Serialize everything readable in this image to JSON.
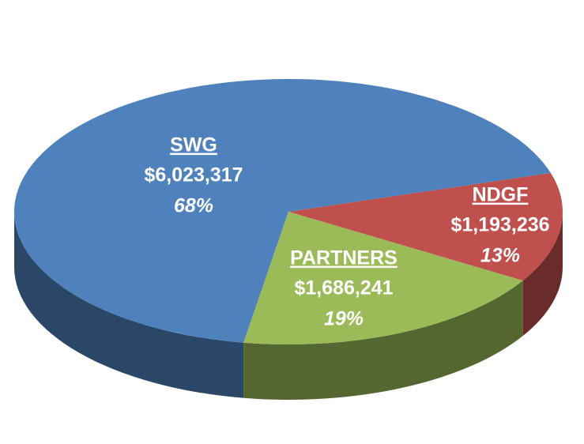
{
  "chart_data": {
    "type": "pie3d",
    "categories": [
      "NDGF",
      "PARTNERS",
      "SWG"
    ],
    "values": [
      1193236,
      1686241,
      6023317
    ],
    "value_labels": [
      "$1,193,236",
      "$1,686,241",
      "$6,023,317"
    ],
    "percent_labels": [
      "13%",
      "19%",
      "68%"
    ],
    "colors": [
      "#c0504d",
      "#9bbb59",
      "#4f81bd"
    ]
  }
}
